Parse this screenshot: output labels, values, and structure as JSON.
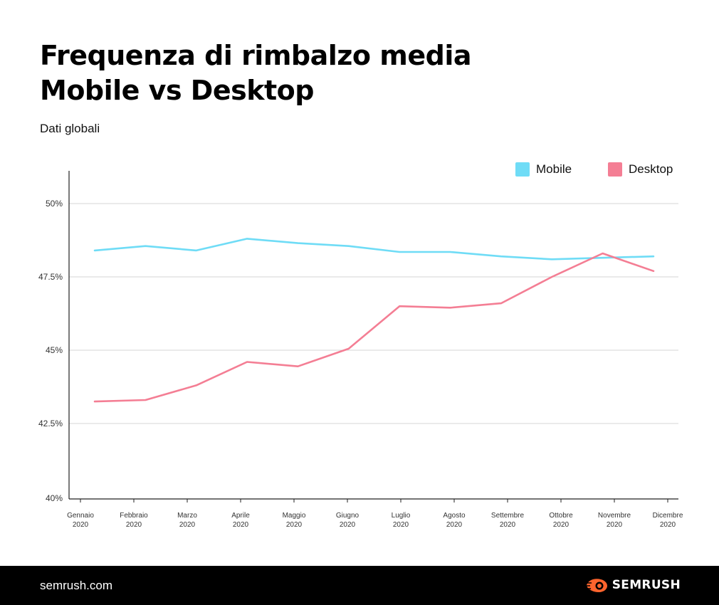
{
  "header": {
    "title_line1": "Frequenza di rimbalzo media",
    "title_line2": "Mobile vs Desktop",
    "subtitle": "Dati globali"
  },
  "chart_data": {
    "type": "line",
    "title": "Frequenza di rimbalzo media Mobile vs Desktop",
    "subtitle": "Dati globali",
    "x_tick_labels": [
      [
        "Gennaio",
        "2020"
      ],
      [
        "Febbraio",
        "2020"
      ],
      [
        "Marzo",
        "2020"
      ],
      [
        "Aprile",
        "2020"
      ],
      [
        "Maggio",
        "2020"
      ],
      [
        "Giugno",
        "2020"
      ],
      [
        "Luglio",
        "2020"
      ],
      [
        "Agosto",
        "2020"
      ],
      [
        "Settembre",
        "2020"
      ],
      [
        "Ottobre",
        "2020"
      ],
      [
        "Novembre",
        "2020"
      ],
      [
        "Dicembre",
        "2020"
      ]
    ],
    "categories": [
      "Gennaio 2020",
      "Febbraio 2020",
      "Marzo 2020",
      "Aprile 2020",
      "Maggio 2020",
      "Giugno 2020",
      "Luglio 2020",
      "Agosto 2020",
      "Settembre 2020",
      "Ottobre 2020",
      "Novembre 2020",
      "Dicembre 2020"
    ],
    "series": [
      {
        "name": "Mobile",
        "color": "#6fdcf6",
        "values": [
          48.4,
          48.55,
          48.4,
          48.8,
          48.65,
          48.55,
          48.35,
          48.35,
          48.2,
          48.1,
          48.15,
          48.2
        ]
      },
      {
        "name": "Desktop",
        "color": "#f47e94",
        "values": [
          43.25,
          43.3,
          43.8,
          44.6,
          44.45,
          45.05,
          46.5,
          46.45,
          46.6,
          47.5,
          48.3,
          47.7
        ]
      }
    ],
    "y_ticks": [
      40,
      42.5,
      45,
      47.5,
      50
    ],
    "y_tick_labels": [
      "40%",
      "42.5%",
      "45%",
      "47.5%",
      "50%"
    ],
    "ylim": [
      40,
      51
    ],
    "xlabel": "",
    "ylabel": "",
    "grid": true,
    "legend_position": "top-right"
  },
  "footer": {
    "site": "semrush.com",
    "brand": "SEMRUSH",
    "icon": "semrush-fire-icon",
    "background": "#000000",
    "brand_accent": "#ff642d"
  }
}
